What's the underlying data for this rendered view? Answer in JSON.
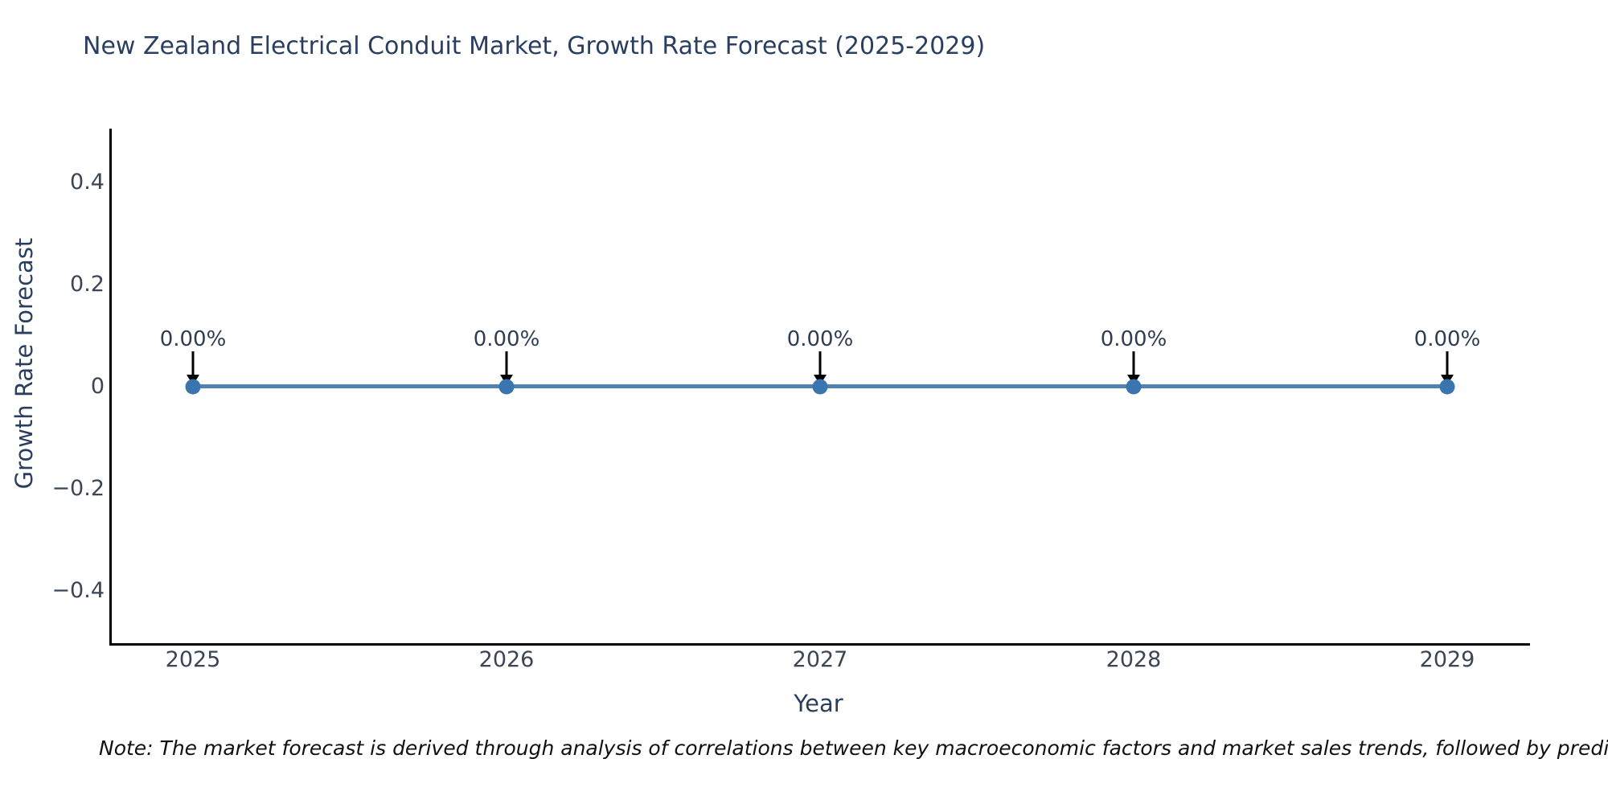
{
  "chart_data": {
    "type": "line",
    "title": "New Zealand Electrical Conduit Market, Growth Rate Forecast (2025-2029)",
    "xlabel": "Year",
    "ylabel": "Growth Rate Forecast",
    "x": [
      "2025",
      "2026",
      "2027",
      "2028",
      "2029"
    ],
    "series": [
      {
        "name": "Growth Rate Forecast",
        "values": [
          0,
          0,
          0,
          0,
          0
        ]
      }
    ],
    "point_labels": [
      "0.00%",
      "0.00%",
      "0.00%",
      "0.00%",
      "0.00%"
    ],
    "yticks": [
      0.4,
      0.2,
      0,
      -0.2,
      -0.4
    ],
    "ytick_labels": [
      "0.4",
      "0.2",
      "0",
      "−0.2",
      "−0.4"
    ],
    "ylim": [
      -0.5,
      0.5
    ],
    "grid": false,
    "legend": false,
    "annotation_style": "black downward arrows from each 0.00% label to its data point",
    "colors": {
      "line": "#5083b2",
      "marker": "#3a75b0",
      "arrow": "#000000",
      "axis_line": "#000000",
      "title_text": "#2a3f5f",
      "tick_text": "#3a4556",
      "note_text": "#111111",
      "background": "#ffffff"
    }
  },
  "note": {
    "text": "Note: The market forecast is derived through analysis of correlations between key macroeconomic factors and market sales trends, followed by predictive modeling to project future sales"
  }
}
